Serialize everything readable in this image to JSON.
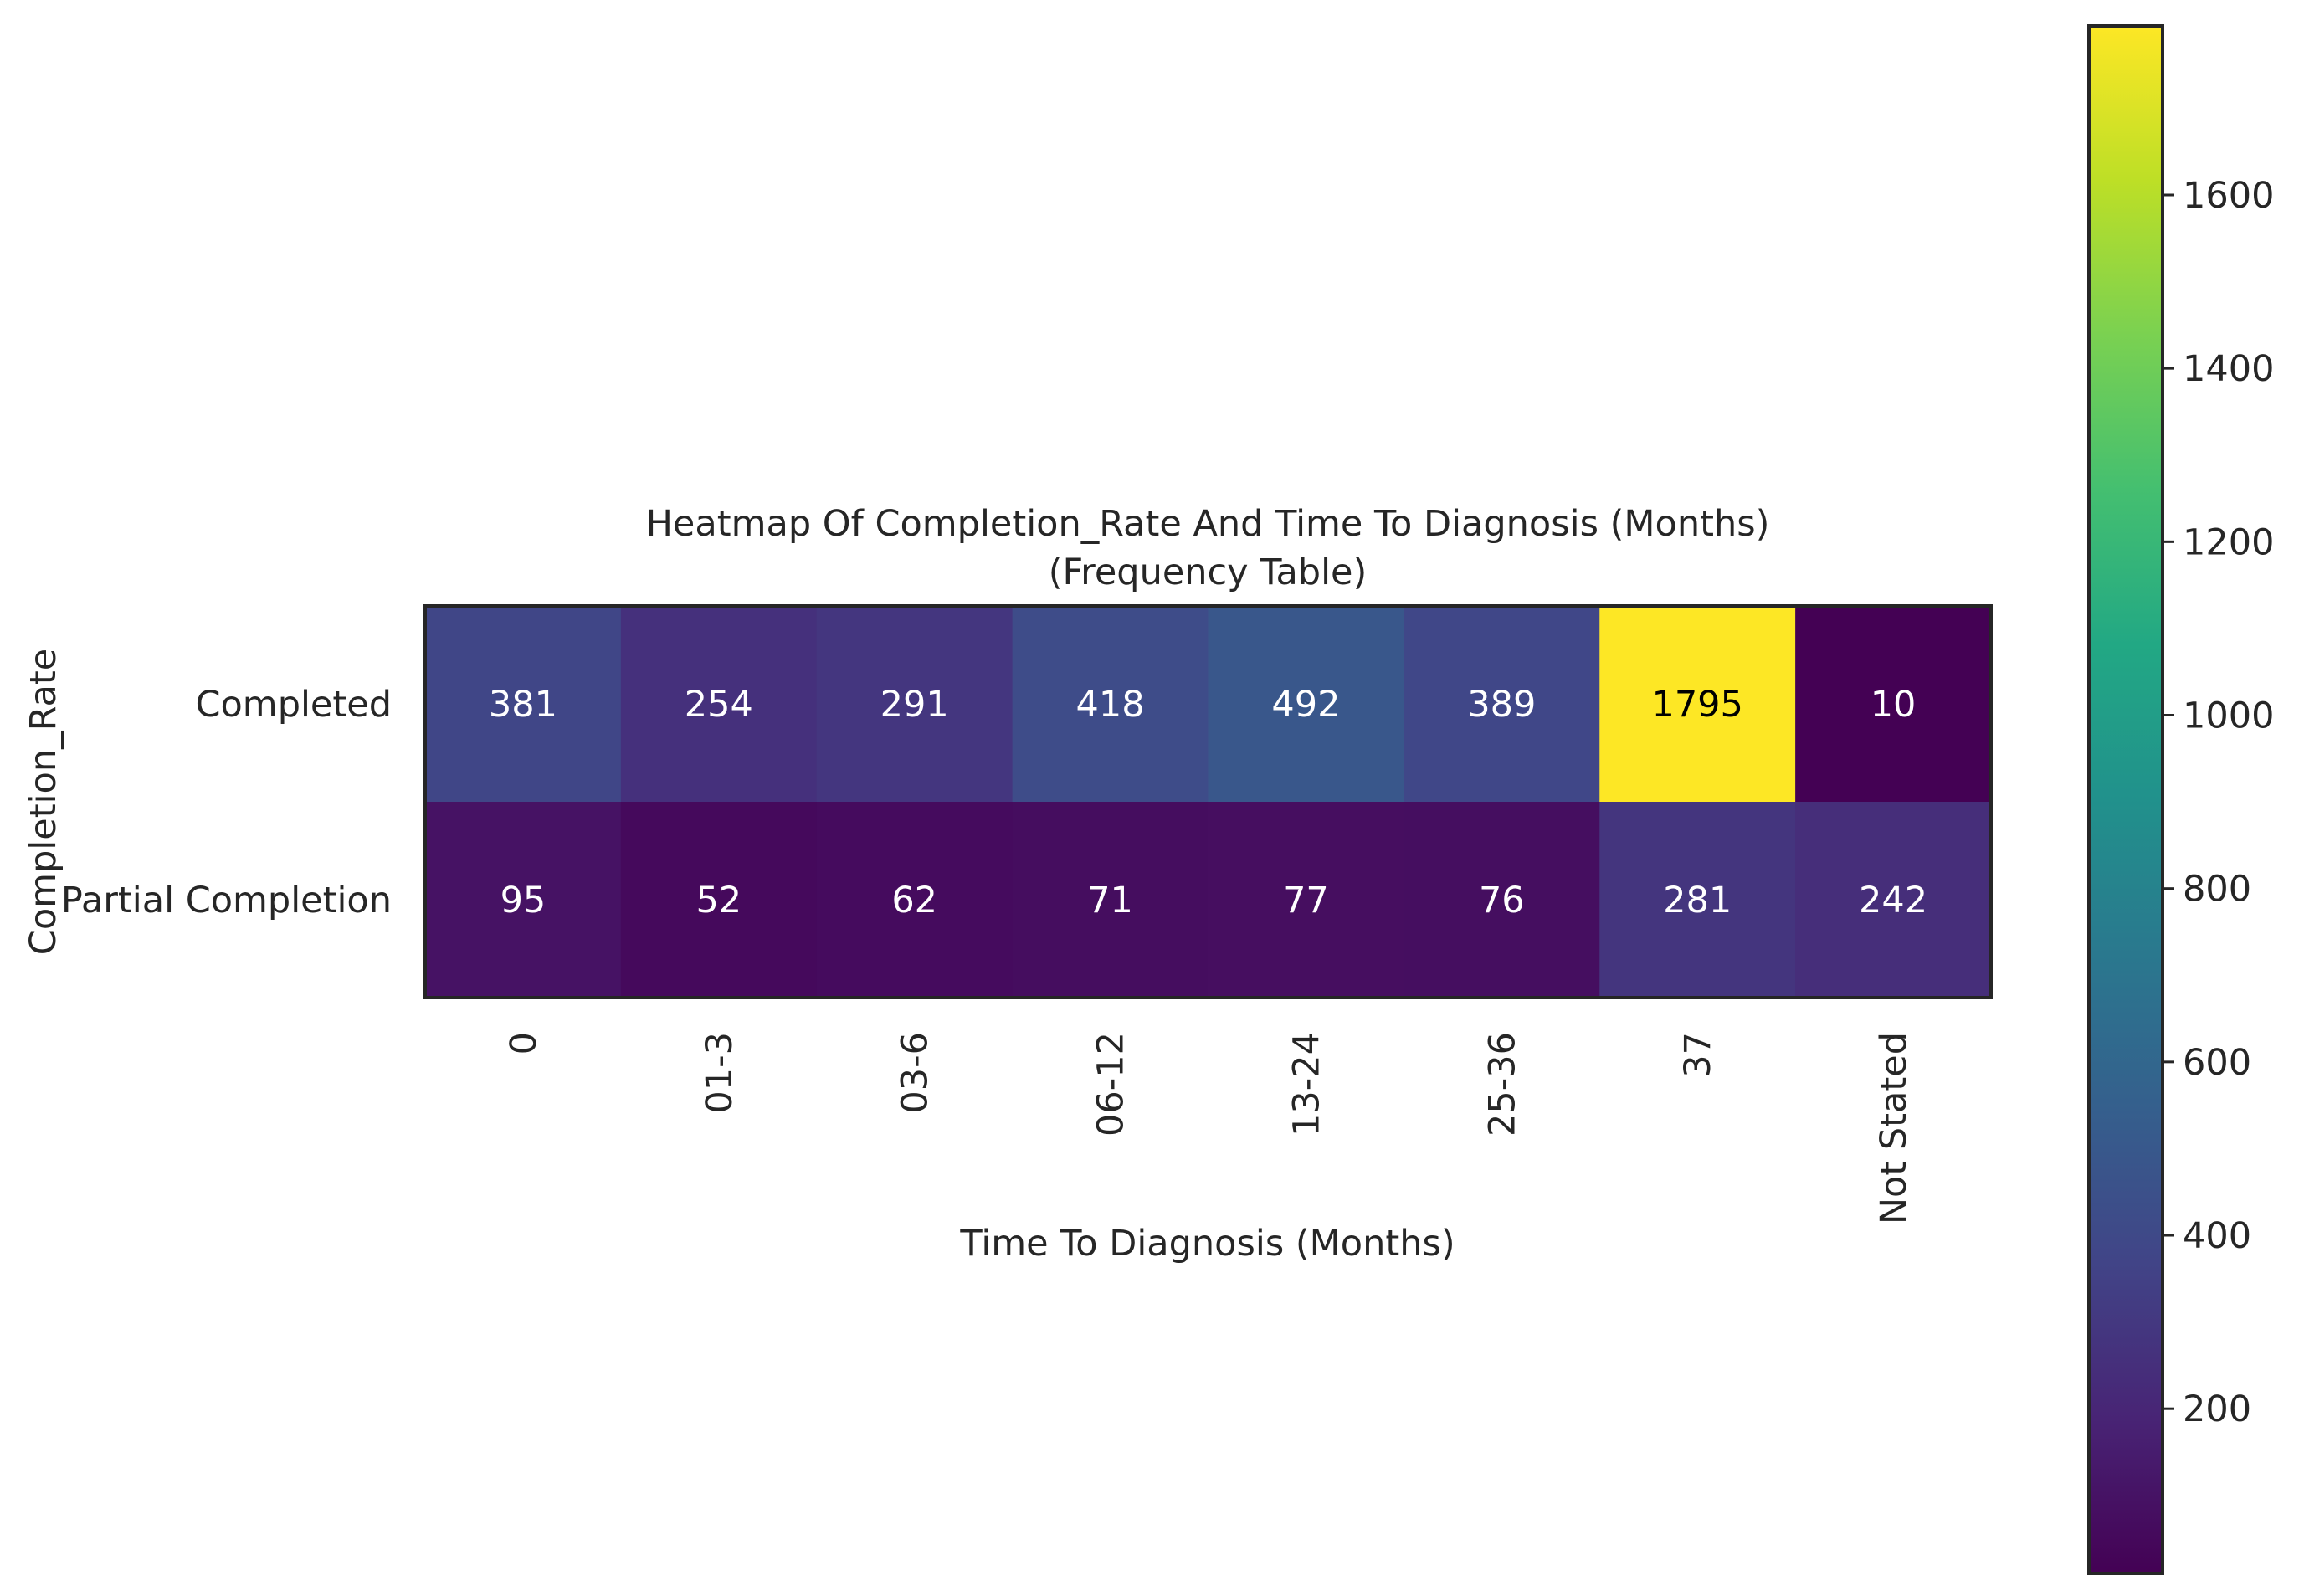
{
  "chart_data": {
    "type": "heatmap",
    "title": "Heatmap Of Completion_Rate And Time To Diagnosis (Months)",
    "subtitle": "(Frequency Table)",
    "xlabel": "Time To Diagnosis (Months)",
    "ylabel": "Completion_Rate",
    "x_categories": [
      "0",
      "01-3",
      "03-6",
      "06-12",
      "13-24",
      "25-36",
      "37",
      "Not Stated"
    ],
    "y_categories": [
      "Completed",
      "Partial Completion"
    ],
    "values": [
      [
        381,
        254,
        291,
        418,
        492,
        389,
        1795,
        10
      ],
      [
        95,
        52,
        62,
        71,
        77,
        76,
        281,
        242
      ]
    ],
    "colormap": "viridis",
    "colorbar": {
      "range": [
        10,
        1795
      ],
      "ticks": [
        200,
        400,
        600,
        800,
        1000,
        1200,
        1400,
        1600
      ]
    },
    "annotation_colors": {
      "dark_cell": "#ffffff",
      "light_cell": "#000000"
    }
  }
}
